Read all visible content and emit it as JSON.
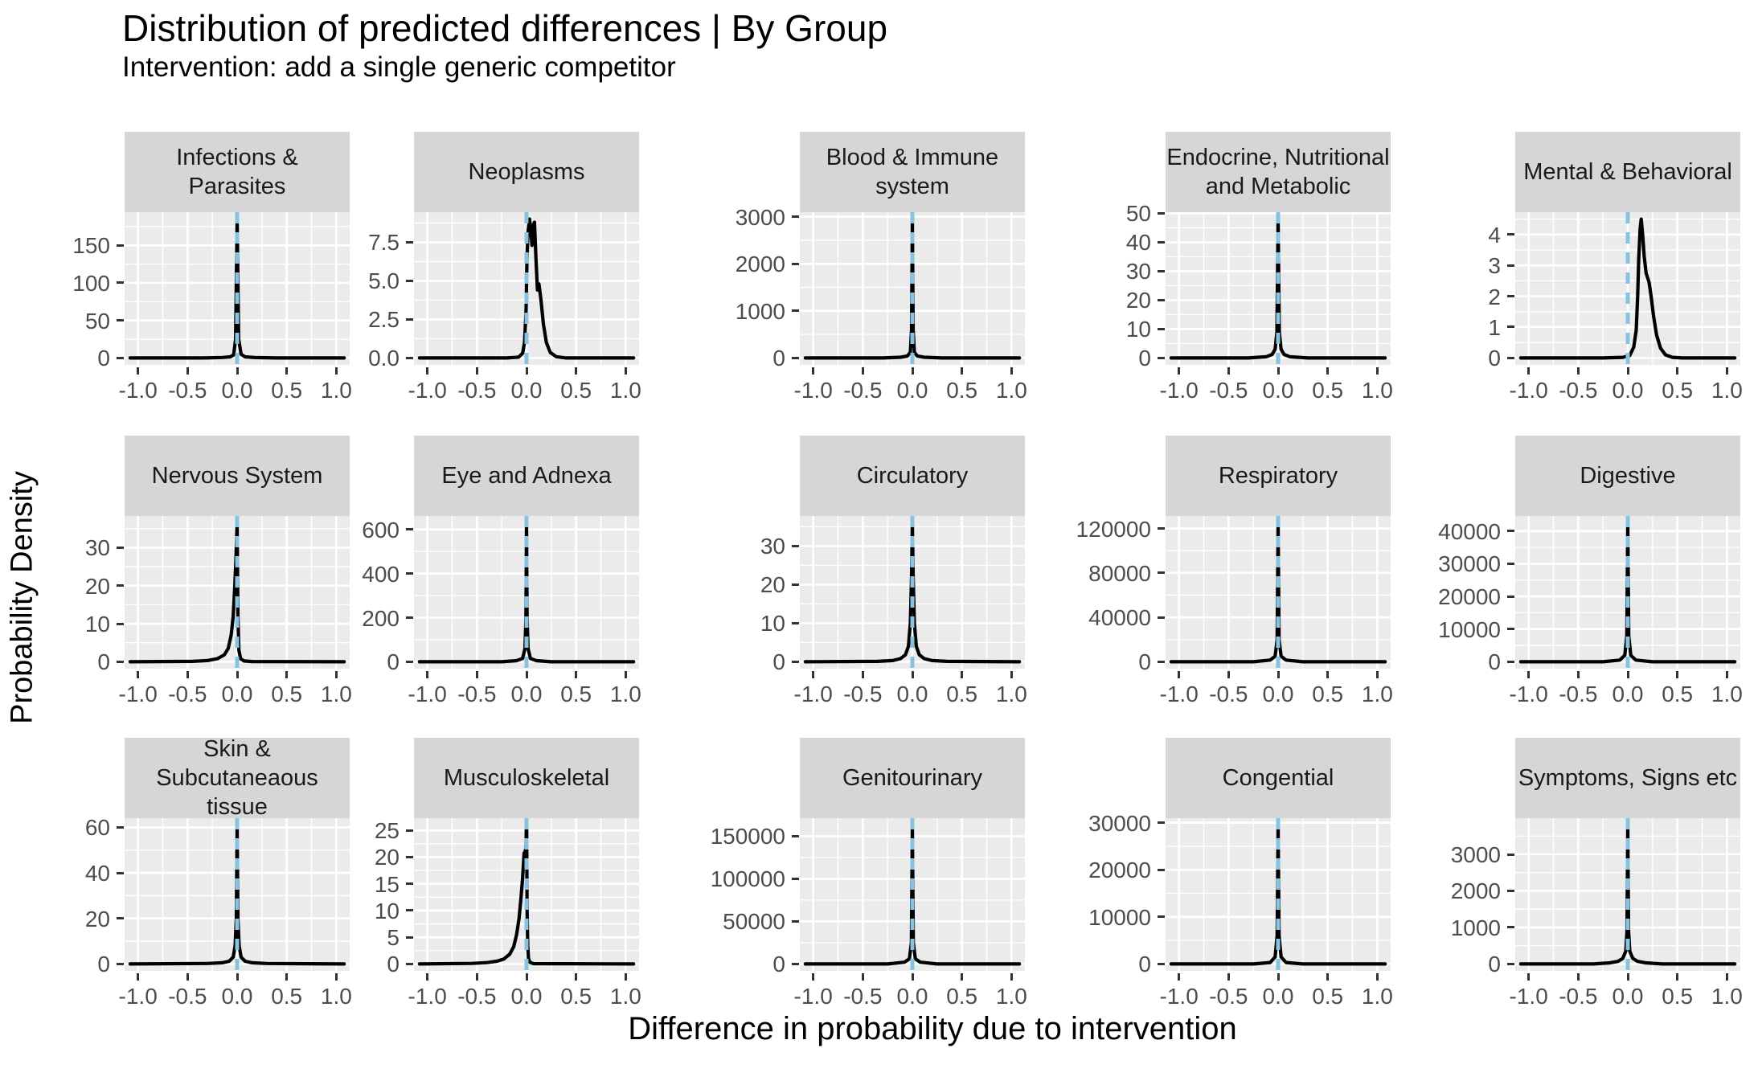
{
  "title": "Distribution of predicted differences | By Group",
  "subtitle": "Intervention: add a single generic competitor",
  "x_axis_title": "Difference in probability due to intervention",
  "y_axis_title": "Probability Density",
  "colors": {
    "curve": "#000000",
    "zero_line": "#87C3E0",
    "panel_bg": "#EBEBEB",
    "strip_bg": "#D6D6D6",
    "grid": "#FFFFFF",
    "tick_label": "#4D4D4D",
    "tick_mark": "#333333"
  },
  "chart_data": {
    "type": "line",
    "subtype": "faceted-density",
    "grid": "on",
    "legend": "none",
    "xlim": [
      -1.135,
      1.135
    ],
    "x_ticks": [
      -1.0,
      -0.5,
      0.0,
      0.5,
      1.0
    ],
    "x_tick_labels": [
      "-1.0",
      "-0.5",
      "0.0",
      "0.5",
      "1.0"
    ],
    "vline_x": 0,
    "facets": [
      {
        "label": "Infections & Parasites",
        "y_ticks": [
          0,
          50,
          100,
          150
        ],
        "y_tick_labels": [
          "0",
          "50",
          "100",
          "150"
        ],
        "ymax": 185,
        "curve": [
          [
            -1.08,
            0
          ],
          [
            -0.35,
            0
          ],
          [
            -0.15,
            0.6
          ],
          [
            -0.07,
            1.5
          ],
          [
            -0.035,
            4
          ],
          [
            -0.015,
            25
          ],
          [
            0,
            185
          ],
          [
            0.015,
            25
          ],
          [
            0.04,
            5
          ],
          [
            0.08,
            1.5
          ],
          [
            0.18,
            0.5
          ],
          [
            0.4,
            0
          ],
          [
            1.08,
            0
          ]
        ]
      },
      {
        "label": "Neoplasms",
        "y_ticks": [
          0,
          2.5,
          5.0,
          7.5
        ],
        "y_tick_labels": [
          "0.0",
          "2.5",
          "5.0",
          "7.5"
        ],
        "ymax": 9.0,
        "curve": [
          [
            -1.08,
            0
          ],
          [
            -0.2,
            0
          ],
          [
            -0.08,
            0.05
          ],
          [
            -0.04,
            0.3
          ],
          [
            -0.02,
            1
          ],
          [
            -0.005,
            3
          ],
          [
            0.005,
            6.5
          ],
          [
            0.015,
            8.2
          ],
          [
            0.03,
            9.0
          ],
          [
            0.045,
            8.1
          ],
          [
            0.055,
            7.3
          ],
          [
            0.065,
            8.6
          ],
          [
            0.08,
            8.8
          ],
          [
            0.095,
            6.5
          ],
          [
            0.11,
            4.4
          ],
          [
            0.125,
            4.8
          ],
          [
            0.145,
            3.8
          ],
          [
            0.17,
            2.2
          ],
          [
            0.2,
            1.0
          ],
          [
            0.24,
            0.35
          ],
          [
            0.3,
            0.08
          ],
          [
            0.4,
            0
          ],
          [
            1.08,
            0
          ]
        ]
      },
      {
        "label": "Blood & Immune system",
        "y_ticks": [
          0,
          1000,
          2000,
          3000
        ],
        "y_tick_labels": [
          "0",
          "1000",
          "2000",
          "3000"
        ],
        "ymax": 2950,
        "curve": [
          [
            -1.08,
            0
          ],
          [
            -0.3,
            0
          ],
          [
            -0.12,
            15
          ],
          [
            -0.05,
            40
          ],
          [
            -0.02,
            120
          ],
          [
            -0.008,
            600
          ],
          [
            0,
            2950
          ],
          [
            0.008,
            600
          ],
          [
            0.02,
            120
          ],
          [
            0.05,
            40
          ],
          [
            0.12,
            15
          ],
          [
            0.3,
            0
          ],
          [
            1.08,
            0
          ]
        ]
      },
      {
        "label": "Endocrine, Nutritional\nand Metabolic",
        "y_ticks": [
          0,
          10,
          20,
          30,
          40,
          50
        ],
        "y_tick_labels": [
          "0",
          "10",
          "20",
          "30",
          "40",
          "50"
        ],
        "ymax": 48,
        "curve": [
          [
            -1.08,
            0
          ],
          [
            -0.3,
            0
          ],
          [
            -0.12,
            0.4
          ],
          [
            -0.06,
            1.2
          ],
          [
            -0.03,
            3
          ],
          [
            -0.012,
            9
          ],
          [
            0,
            48
          ],
          [
            0.012,
            9
          ],
          [
            0.03,
            3
          ],
          [
            0.06,
            1.2
          ],
          [
            0.12,
            0.4
          ],
          [
            0.3,
            0
          ],
          [
            1.08,
            0
          ]
        ]
      },
      {
        "label": "Mental & Behavioral",
        "y_ticks": [
          0,
          1,
          2,
          3,
          4
        ],
        "y_tick_labels": [
          "0",
          "1",
          "2",
          "3",
          "4"
        ],
        "ymax": 4.5,
        "curve": [
          [
            -1.08,
            0
          ],
          [
            -0.25,
            0
          ],
          [
            -0.05,
            0.02
          ],
          [
            0.02,
            0.08
          ],
          [
            0.06,
            0.35
          ],
          [
            0.085,
            0.9
          ],
          [
            0.1,
            2.0
          ],
          [
            0.11,
            3.2
          ],
          [
            0.125,
            4.2
          ],
          [
            0.135,
            4.5
          ],
          [
            0.15,
            4.0
          ],
          [
            0.165,
            3.3
          ],
          [
            0.185,
            2.75
          ],
          [
            0.2,
            2.6
          ],
          [
            0.215,
            2.45
          ],
          [
            0.235,
            2.0
          ],
          [
            0.26,
            1.35
          ],
          [
            0.29,
            0.75
          ],
          [
            0.33,
            0.32
          ],
          [
            0.38,
            0.1
          ],
          [
            0.45,
            0.02
          ],
          [
            0.55,
            0
          ],
          [
            1.08,
            0
          ]
        ]
      },
      {
        "label": "Nervous System",
        "y_ticks": [
          0,
          10,
          20,
          30
        ],
        "y_tick_labels": [
          "0",
          "10",
          "20",
          "30"
        ],
        "ymax": 36.5,
        "curve": [
          [
            -1.08,
            0
          ],
          [
            -0.45,
            0.1
          ],
          [
            -0.3,
            0.3
          ],
          [
            -0.2,
            0.8
          ],
          [
            -0.13,
            1.8
          ],
          [
            -0.09,
            3.5
          ],
          [
            -0.06,
            7
          ],
          [
            -0.04,
            12
          ],
          [
            -0.025,
            19
          ],
          [
            -0.012,
            27
          ],
          [
            0,
            36.5
          ],
          [
            0.008,
            12
          ],
          [
            0.018,
            3
          ],
          [
            0.035,
            0.8
          ],
          [
            0.07,
            0.2
          ],
          [
            0.15,
            0.05
          ],
          [
            1.08,
            0
          ]
        ]
      },
      {
        "label": "Eye and Adnexa",
        "y_ticks": [
          0,
          200,
          400,
          600
        ],
        "y_tick_labels": [
          "0",
          "200",
          "400",
          "600"
        ],
        "ymax": 630,
        "curve": [
          [
            -1.08,
            0
          ],
          [
            -0.25,
            0
          ],
          [
            -0.1,
            5
          ],
          [
            -0.04,
            15
          ],
          [
            -0.015,
            60
          ],
          [
            -0.006,
            200
          ],
          [
            0,
            630
          ],
          [
            0.006,
            200
          ],
          [
            0.015,
            60
          ],
          [
            0.04,
            15
          ],
          [
            0.1,
            5
          ],
          [
            0.25,
            0
          ],
          [
            1.08,
            0
          ]
        ]
      },
      {
        "label": "Circulatory",
        "y_ticks": [
          0,
          10,
          20,
          30
        ],
        "y_tick_labels": [
          "0",
          "10",
          "20",
          "30"
        ],
        "ymax": 36,
        "curve": [
          [
            -1.08,
            0
          ],
          [
            -0.35,
            0.1
          ],
          [
            -0.2,
            0.3
          ],
          [
            -0.12,
            0.8
          ],
          [
            -0.07,
            1.8
          ],
          [
            -0.04,
            4
          ],
          [
            -0.02,
            10
          ],
          [
            -0.008,
            22
          ],
          [
            0,
            36
          ],
          [
            0.008,
            22
          ],
          [
            0.02,
            10
          ],
          [
            0.04,
            4
          ],
          [
            0.07,
            1.8
          ],
          [
            0.12,
            0.8
          ],
          [
            0.2,
            0.3
          ],
          [
            0.35,
            0.1
          ],
          [
            1.08,
            0
          ]
        ]
      },
      {
        "label": "Respiratory",
        "y_ticks": [
          0,
          40000,
          80000,
          120000
        ],
        "y_tick_labels": [
          "0",
          "40000",
          "80000",
          "120000"
        ],
        "ymax": 125000,
        "curve": [
          [
            -1.08,
            0
          ],
          [
            -0.25,
            0
          ],
          [
            -0.08,
            1500
          ],
          [
            -0.03,
            5000
          ],
          [
            -0.01,
            20000
          ],
          [
            0,
            125000
          ],
          [
            0.01,
            20000
          ],
          [
            0.03,
            5000
          ],
          [
            0.08,
            1500
          ],
          [
            0.25,
            0
          ],
          [
            1.08,
            0
          ]
        ]
      },
      {
        "label": "Digestive",
        "y_ticks": [
          0,
          10000,
          20000,
          30000,
          40000
        ],
        "y_tick_labels": [
          "0",
          "10000",
          "20000",
          "30000",
          "40000"
        ],
        "ymax": 42500,
        "curve": [
          [
            -1.08,
            0
          ],
          [
            -0.25,
            0
          ],
          [
            -0.08,
            500
          ],
          [
            -0.03,
            2000
          ],
          [
            -0.01,
            8000
          ],
          [
            0,
            42500
          ],
          [
            0.01,
            8000
          ],
          [
            0.03,
            2000
          ],
          [
            0.08,
            500
          ],
          [
            0.25,
            0
          ],
          [
            1.08,
            0
          ]
        ]
      },
      {
        "label": "Skin & Subcutaneaous\ntissue",
        "y_ticks": [
          0,
          20,
          40,
          60
        ],
        "y_tick_labels": [
          "0",
          "20",
          "40",
          "60"
        ],
        "ymax": 61,
        "curve": [
          [
            -1.08,
            0
          ],
          [
            -0.3,
            0.2
          ],
          [
            -0.15,
            0.5
          ],
          [
            -0.08,
            1.2
          ],
          [
            -0.04,
            3
          ],
          [
            -0.02,
            8
          ],
          [
            -0.008,
            20
          ],
          [
            0,
            61
          ],
          [
            0.008,
            20
          ],
          [
            0.02,
            8
          ],
          [
            0.04,
            3
          ],
          [
            0.08,
            1.2
          ],
          [
            0.15,
            0.5
          ],
          [
            0.3,
            0.2
          ],
          [
            1.08,
            0
          ]
        ]
      },
      {
        "label": "Musculoskeletal",
        "y_ticks": [
          0,
          5,
          10,
          15,
          20,
          25
        ],
        "y_tick_labels": [
          "0",
          "5",
          "10",
          "15",
          "20",
          "25"
        ],
        "ymax": 26,
        "curve": [
          [
            -1.08,
            0
          ],
          [
            -0.55,
            0.1
          ],
          [
            -0.4,
            0.25
          ],
          [
            -0.3,
            0.5
          ],
          [
            -0.23,
            0.9
          ],
          [
            -0.17,
            1.8
          ],
          [
            -0.13,
            3.2
          ],
          [
            -0.1,
            5.5
          ],
          [
            -0.075,
            8.5
          ],
          [
            -0.055,
            12.5
          ],
          [
            -0.04,
            16
          ],
          [
            -0.03,
            19
          ],
          [
            -0.024,
            20.8
          ],
          [
            -0.018,
            20.0
          ],
          [
            -0.012,
            21.3
          ],
          [
            -0.006,
            21.0
          ],
          [
            -0.002,
            26
          ],
          [
            0.002,
            26
          ],
          [
            0.006,
            10
          ],
          [
            0.012,
            3.5
          ],
          [
            0.02,
            1.0
          ],
          [
            0.035,
            0.3
          ],
          [
            0.07,
            0.05
          ],
          [
            1.08,
            0
          ]
        ]
      },
      {
        "label": "Genitourinary",
        "y_ticks": [
          0,
          50000,
          100000,
          150000
        ],
        "y_tick_labels": [
          "0",
          "50000",
          "100000",
          "150000"
        ],
        "ymax": 163000,
        "curve": [
          [
            -1.08,
            0
          ],
          [
            -0.25,
            0
          ],
          [
            -0.08,
            2000
          ],
          [
            -0.03,
            6000
          ],
          [
            -0.01,
            25000
          ],
          [
            0,
            163000
          ],
          [
            0.01,
            25000
          ],
          [
            0.03,
            6000
          ],
          [
            0.08,
            2000
          ],
          [
            0.25,
            0
          ],
          [
            1.08,
            0
          ]
        ]
      },
      {
        "label": "Congential",
        "y_ticks": [
          0,
          10000,
          20000,
          30000
        ],
        "y_tick_labels": [
          "0",
          "10000",
          "20000",
          "30000"
        ],
        "ymax": 29500,
        "curve": [
          [
            -1.08,
            0
          ],
          [
            -0.25,
            0
          ],
          [
            -0.08,
            300
          ],
          [
            -0.03,
            1500
          ],
          [
            -0.01,
            6000
          ],
          [
            0,
            29500
          ],
          [
            0.01,
            6000
          ],
          [
            0.03,
            1500
          ],
          [
            0.08,
            300
          ],
          [
            0.25,
            0
          ],
          [
            1.08,
            0
          ]
        ]
      },
      {
        "label": "Symptoms, Signs etc",
        "y_ticks": [
          0,
          1000,
          2000,
          3000
        ],
        "y_tick_labels": [
          "0",
          "1000",
          "2000",
          "3000"
        ],
        "ymax": 3800,
        "curve": [
          [
            -1.08,
            0
          ],
          [
            -0.35,
            0
          ],
          [
            -0.18,
            30
          ],
          [
            -0.1,
            70
          ],
          [
            -0.05,
            150
          ],
          [
            -0.02,
            350
          ],
          [
            -0.008,
            900
          ],
          [
            0,
            3800
          ],
          [
            0.008,
            900
          ],
          [
            0.02,
            350
          ],
          [
            0.05,
            150
          ],
          [
            0.1,
            70
          ],
          [
            0.18,
            30
          ],
          [
            0.35,
            0
          ],
          [
            1.08,
            0
          ]
        ]
      }
    ]
  }
}
